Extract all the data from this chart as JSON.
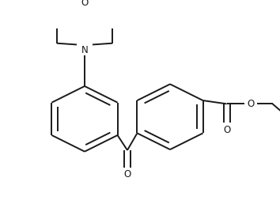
{
  "bg": "#ffffff",
  "lc": "#1a1a1a",
  "lw": 1.4,
  "lw_thin": 1.4,
  "fs": 8.5,
  "figsize": [
    3.54,
    2.58
  ],
  "dpi": 100,
  "xlim": [
    0,
    354
  ],
  "ylim": [
    0,
    258
  ]
}
